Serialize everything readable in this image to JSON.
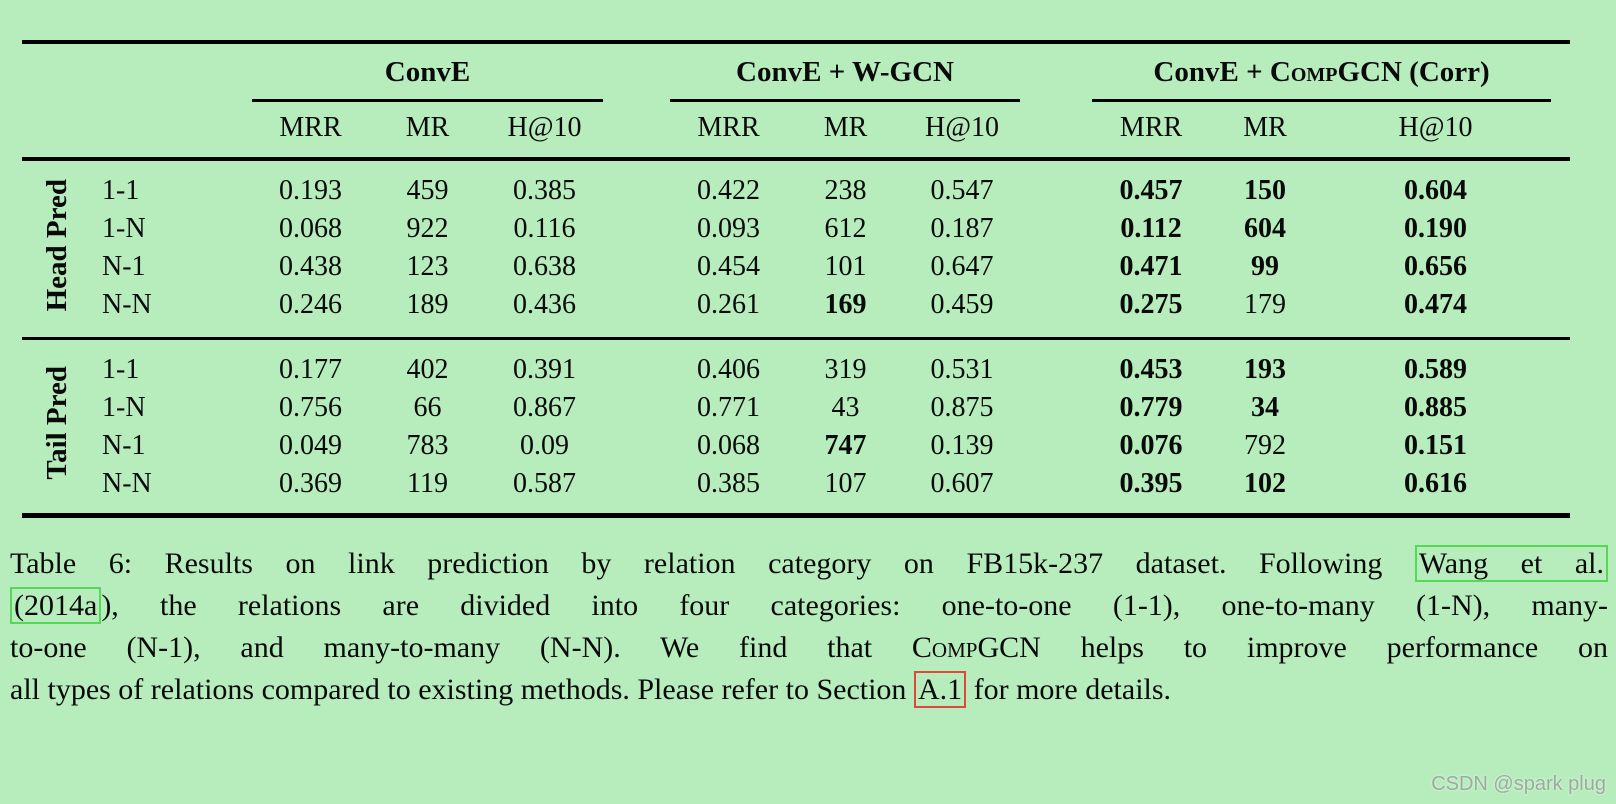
{
  "table": {
    "groups": [
      {
        "title": "ConvE",
        "subcolumns": [
          "MRR",
          "MR",
          "H@10"
        ]
      },
      {
        "title": "ConvE + W-GCN",
        "subcolumns": [
          "MRR",
          "MR",
          "H@10"
        ]
      },
      {
        "title_pre": "ConvE + C",
        "title_smallcaps": "omp",
        "title_post": "GCN (Corr)",
        "subcolumns": [
          "MRR",
          "MR",
          "H@10"
        ]
      }
    ],
    "sections": [
      {
        "label": "Head Pred",
        "rows": [
          {
            "category": "1-1",
            "values": [
              {
                "v": "0.193",
                "b": false
              },
              {
                "v": "459",
                "b": false
              },
              {
                "v": "0.385",
                "b": false
              },
              {
                "v": "0.422",
                "b": false
              },
              {
                "v": "238",
                "b": false
              },
              {
                "v": "0.547",
                "b": false
              },
              {
                "v": "0.457",
                "b": true
              },
              {
                "v": "150",
                "b": true
              },
              {
                "v": "0.604",
                "b": true
              }
            ]
          },
          {
            "category": "1-N",
            "values": [
              {
                "v": "0.068",
                "b": false
              },
              {
                "v": "922",
                "b": false
              },
              {
                "v": "0.116",
                "b": false
              },
              {
                "v": "0.093",
                "b": false
              },
              {
                "v": "612",
                "b": false
              },
              {
                "v": "0.187",
                "b": false
              },
              {
                "v": "0.112",
                "b": true
              },
              {
                "v": "604",
                "b": true
              },
              {
                "v": "0.190",
                "b": true
              }
            ]
          },
          {
            "category": "N-1",
            "values": [
              {
                "v": "0.438",
                "b": false
              },
              {
                "v": "123",
                "b": false
              },
              {
                "v": "0.638",
                "b": false
              },
              {
                "v": "0.454",
                "b": false
              },
              {
                "v": "101",
                "b": false
              },
              {
                "v": "0.647",
                "b": false
              },
              {
                "v": "0.471",
                "b": true
              },
              {
                "v": "99",
                "b": true
              },
              {
                "v": "0.656",
                "b": true
              }
            ]
          },
          {
            "category": "N-N",
            "values": [
              {
                "v": "0.246",
                "b": false
              },
              {
                "v": "189",
                "b": false
              },
              {
                "v": "0.436",
                "b": false
              },
              {
                "v": "0.261",
                "b": false
              },
              {
                "v": "169",
                "b": true
              },
              {
                "v": "0.459",
                "b": false
              },
              {
                "v": "0.275",
                "b": true
              },
              {
                "v": "179",
                "b": false
              },
              {
                "v": "0.474",
                "b": true
              }
            ]
          }
        ]
      },
      {
        "label": "Tail Pred",
        "rows": [
          {
            "category": "1-1",
            "values": [
              {
                "v": "0.177",
                "b": false
              },
              {
                "v": "402",
                "b": false
              },
              {
                "v": "0.391",
                "b": false
              },
              {
                "v": "0.406",
                "b": false
              },
              {
                "v": "319",
                "b": false
              },
              {
                "v": "0.531",
                "b": false
              },
              {
                "v": "0.453",
                "b": true
              },
              {
                "v": "193",
                "b": true
              },
              {
                "v": "0.589",
                "b": true
              }
            ]
          },
          {
            "category": "1-N",
            "values": [
              {
                "v": "0.756",
                "b": false
              },
              {
                "v": "66",
                "b": false
              },
              {
                "v": "0.867",
                "b": false
              },
              {
                "v": "0.771",
                "b": false
              },
              {
                "v": "43",
                "b": false
              },
              {
                "v": "0.875",
                "b": false
              },
              {
                "v": "0.779",
                "b": true
              },
              {
                "v": "34",
                "b": true
              },
              {
                "v": "0.885",
                "b": true
              }
            ]
          },
          {
            "category": "N-1",
            "values": [
              {
                "v": "0.049",
                "b": false
              },
              {
                "v": "783",
                "b": false
              },
              {
                "v": "0.09",
                "b": false
              },
              {
                "v": "0.068",
                "b": false
              },
              {
                "v": "747",
                "b": true
              },
              {
                "v": "0.139",
                "b": false
              },
              {
                "v": "0.076",
                "b": true
              },
              {
                "v": "792",
                "b": false
              },
              {
                "v": "0.151",
                "b": true
              }
            ]
          },
          {
            "category": "N-N",
            "values": [
              {
                "v": "0.369",
                "b": false
              },
              {
                "v": "119",
                "b": false
              },
              {
                "v": "0.587",
                "b": false
              },
              {
                "v": "0.385",
                "b": false
              },
              {
                "v": "107",
                "b": false
              },
              {
                "v": "0.607",
                "b": false
              },
              {
                "v": "0.395",
                "b": true
              },
              {
                "v": "102",
                "b": true
              },
              {
                "v": "0.616",
                "b": true
              }
            ]
          }
        ]
      }
    ]
  },
  "caption": {
    "line1": {
      "text": "Table 6: Results on link prediction by relation category on FB15k-237 dataset. Following ",
      "link": "Wang et al."
    },
    "line2": {
      "link": "(2014a",
      "text": "), the relations are divided into four categories: one-to-one (1-1), one-to-many (1-N), many-"
    },
    "line3": {
      "pre": "to-one (N-1), and many-to-many (N-N). We find that C",
      "smallcaps": "omp",
      "post": "GCN helps to improve performance on"
    },
    "line4": {
      "pre": "all types of relations compared to existing methods. Please refer to Section ",
      "link": "A.1",
      "post": " for more details."
    }
  },
  "watermark": {
    "text": "CSDN @spark plug"
  },
  "colors": {
    "background": "#b7edbd",
    "rule": "#000000",
    "citation_box_green": "#55d955",
    "section_box_red": "#e0483c",
    "watermark_gray": "#9dab9f"
  }
}
